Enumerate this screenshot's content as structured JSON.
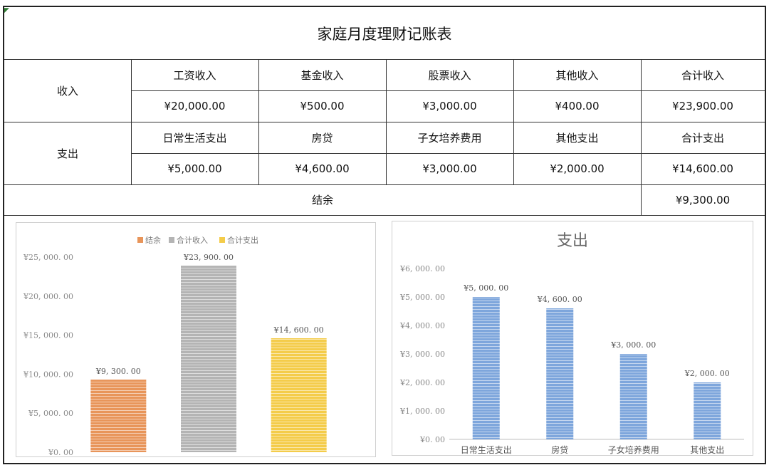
{
  "table": {
    "title": "家庭月度理财记账表",
    "income": {
      "label": "收入",
      "headers": [
        "工资收入",
        "基金收入",
        "股票收入",
        "其他收入",
        "合计收入"
      ],
      "values": [
        "¥20,000.00",
        "¥500.00",
        "¥3,000.00",
        "¥400.00",
        "¥23,900.00"
      ]
    },
    "expense": {
      "label": "支出",
      "headers": [
        "日常生活支出",
        "房贷",
        "子女培养费用",
        "其他支出",
        "合计支出"
      ],
      "values": [
        "¥5,000.00",
        "¥4,600.00",
        "¥3,000.00",
        "¥2,000.00",
        "¥14,600.00"
      ]
    },
    "balance": {
      "label": "结余",
      "value": "¥9,300.00"
    }
  },
  "chart_data": [
    {
      "type": "bar",
      "title": "",
      "legend_position": "top",
      "categories": [
        "结余",
        "合计收入",
        "合计支出"
      ],
      "values": [
        9300,
        23900,
        14600
      ],
      "data_labels": [
        "¥9, 300. 00",
        "¥23, 900. 00",
        "¥14, 600. 00"
      ],
      "colors": [
        "#e8955a",
        "#b4b4b4",
        "#f4cc4a"
      ],
      "legend": [
        "结余",
        "合计收入",
        "合计支出"
      ],
      "ylim": [
        0,
        25000
      ],
      "yticks": [
        0,
        5000,
        10000,
        15000,
        20000,
        25000
      ],
      "ytick_labels": [
        "¥0. 00",
        "¥5, 000. 00",
        "¥10, 000. 00",
        "¥15, 000. 00",
        "¥20, 000. 00",
        "¥25, 000. 00"
      ],
      "show_x_tick_labels": false,
      "grid": false
    },
    {
      "type": "bar",
      "title": "支出",
      "categories": [
        "日常生活支出",
        "房贷",
        "子女培养费用",
        "其他支出"
      ],
      "values": [
        5000,
        4600,
        3000,
        2000
      ],
      "data_labels": [
        "¥5, 000. 00",
        "¥4, 600. 00",
        "¥3, 000. 00",
        "¥2, 000. 00"
      ],
      "color": "#7ea6dc",
      "ylim": [
        0,
        6000
      ],
      "yticks": [
        0,
        1000,
        2000,
        3000,
        4000,
        5000,
        6000
      ],
      "ytick_labels": [
        "¥0. 00",
        "¥1, 000. 00",
        "¥2, 000. 00",
        "¥3, 000. 00",
        "¥4, 000. 00",
        "¥5, 000. 00",
        "¥6, 000. 00"
      ],
      "grid": false
    }
  ]
}
